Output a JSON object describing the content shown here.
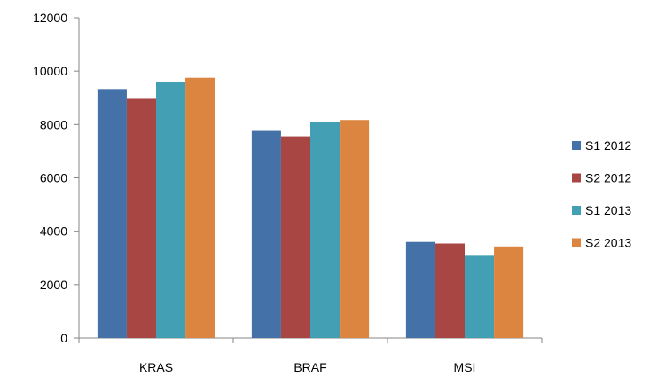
{
  "chart_data": {
    "type": "bar",
    "categories": [
      "KRAS",
      "BRAF",
      "MSI"
    ],
    "series": [
      {
        "name": "S1 2012",
        "values": [
          9330,
          7760,
          3600
        ],
        "color": "#4472A8"
      },
      {
        "name": "S2 2012",
        "values": [
          8960,
          7560,
          3540
        ],
        "color": "#A84644"
      },
      {
        "name": "S1 2013",
        "values": [
          9580,
          8080,
          3080
        ],
        "color": "#43A0B4"
      },
      {
        "name": "S2 2013",
        "values": [
          9750,
          8170,
          3430
        ],
        "color": "#DC8541"
      }
    ],
    "y_ticks": [
      "0",
      "2000",
      "4000",
      "6000",
      "8000",
      "10000",
      "12000"
    ],
    "ylim": [
      0,
      12000
    ],
    "grid": false,
    "legend_position": "right"
  }
}
